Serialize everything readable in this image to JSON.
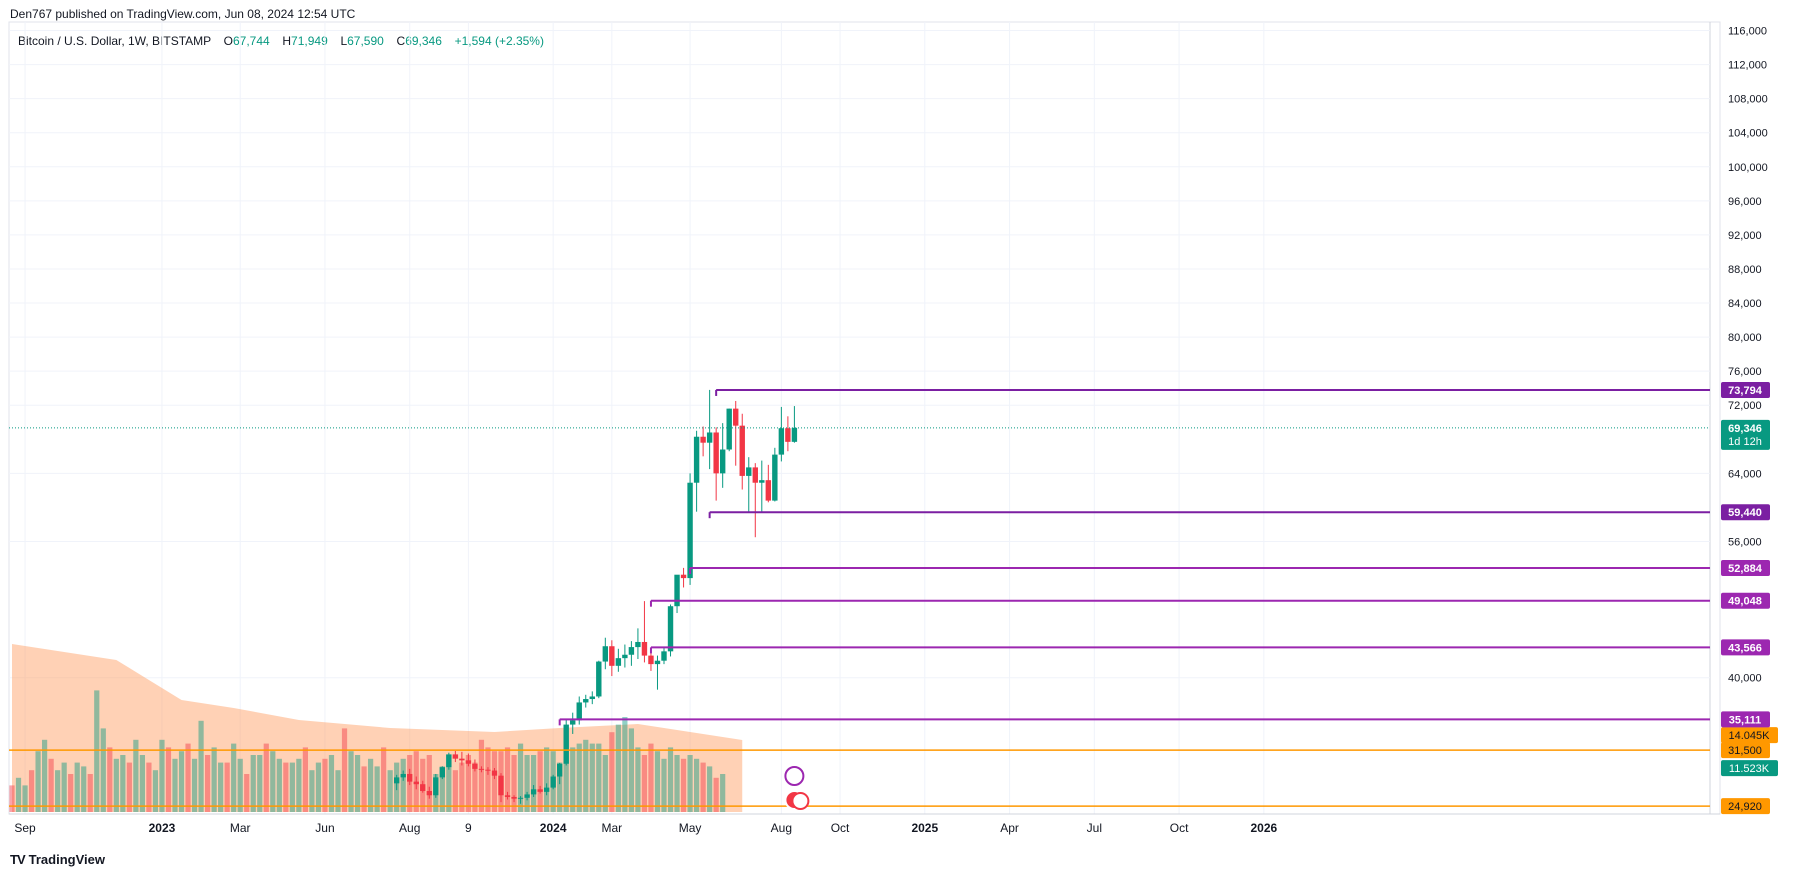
{
  "header": {
    "published": "Den767 published on TradingView.com, Jun 08, 2024 12:54 UTC"
  },
  "legend": {
    "symbol": "Bitcoin / U.S. Dollar, 1W, BITSTAMP",
    "o_label": "O",
    "o": "67,744",
    "h_label": "H",
    "h": "71,949",
    "l_label": "L",
    "l": "67,590",
    "c_label": "C",
    "c": "69,346",
    "change": "+1,594 (+2.35%)"
  },
  "footer": {
    "brand": "TradingView",
    "logo": "TV"
  },
  "colors": {
    "up": "#089981",
    "down": "#F23645",
    "level": "#7B1FA2",
    "orange": "#FF9800",
    "grid": "#F0F3FA"
  },
  "chart_data": {
    "type": "candlestick",
    "title": "Bitcoin / U.S. Dollar, 1W, BITSTAMP",
    "y_ticks": [
      {
        "v": 116000,
        "label": "116,000"
      },
      {
        "v": 112000,
        "label": "112,000"
      },
      {
        "v": 108000,
        "label": "108,000"
      },
      {
        "v": 104000,
        "label": "104,000"
      },
      {
        "v": 100000,
        "label": "100,000"
      },
      {
        "v": 96000,
        "label": "96,000"
      },
      {
        "v": 92000,
        "label": "92,000"
      },
      {
        "v": 88000,
        "label": "88,000"
      },
      {
        "v": 84000,
        "label": "84,000"
      },
      {
        "v": 80000,
        "label": "80,000"
      },
      {
        "v": 76000,
        "label": "76,000"
      },
      {
        "v": 72000,
        "label": "72,000"
      },
      {
        "v": 64000,
        "label": "64,000"
      },
      {
        "v": 56000,
        "label": "56,000"
      },
      {
        "v": 40000,
        "label": "40,000"
      }
    ],
    "x_ticks": [
      {
        "w": 2,
        "label": "Sep",
        "bold": false
      },
      {
        "w": 23,
        "label": "2023",
        "bold": true
      },
      {
        "w": 35,
        "label": "Mar",
        "bold": false
      },
      {
        "w": 48,
        "label": "Jun",
        "bold": false
      },
      {
        "w": 61,
        "label": "Aug",
        "bold": false
      },
      {
        "w": 70,
        "label": "9",
        "bold": false
      },
      {
        "w": 83,
        "label": "2024",
        "bold": true
      },
      {
        "w": 92,
        "label": "Mar",
        "bold": false
      },
      {
        "w": 104,
        "label": "May",
        "bold": false
      },
      {
        "w": 118,
        "label": "Aug",
        "bold": false
      },
      {
        "w": 127,
        "label": "Oct",
        "bold": false
      },
      {
        "w": 140,
        "label": "2025",
        "bold": true
      },
      {
        "w": 153,
        "label": "Apr",
        "bold": false
      },
      {
        "w": 166,
        "label": "Jul",
        "bold": false
      },
      {
        "w": 179,
        "label": "Oct",
        "bold": false
      },
      {
        "w": 192,
        "label": "2026",
        "bold": true
      }
    ],
    "candles_start_week": 59,
    "candles": [
      [
        27600,
        28600,
        26800,
        28300
      ],
      [
        28300,
        29100,
        27900,
        28700
      ],
      [
        28700,
        29300,
        27400,
        27800
      ],
      [
        27800,
        28400,
        26900,
        27500
      ],
      [
        27500,
        27900,
        26500,
        26700
      ],
      [
        26700,
        27200,
        25800,
        26200
      ],
      [
        26200,
        28700,
        25900,
        28300
      ],
      [
        28300,
        29600,
        28100,
        29500
      ],
      [
        29500,
        31200,
        29200,
        31000
      ],
      [
        31000,
        31400,
        30100,
        30500
      ],
      [
        30500,
        31300,
        29700,
        30300
      ],
      [
        30300,
        31100,
        29600,
        29900
      ],
      [
        29900,
        30400,
        29000,
        29300
      ],
      [
        29300,
        29600,
        28900,
        29200
      ],
      [
        29200,
        29500,
        28600,
        29100
      ],
      [
        29100,
        29400,
        28100,
        28500
      ],
      [
        28500,
        28800,
        25400,
        26200
      ],
      [
        26200,
        26600,
        25700,
        26000
      ],
      [
        26000,
        26200,
        25400,
        25800
      ],
      [
        25800,
        26100,
        25200,
        25900
      ],
      [
        25900,
        26600,
        25600,
        26300
      ],
      [
        26300,
        27400,
        26000,
        26900
      ],
      [
        26900,
        27300,
        26400,
        26600
      ],
      [
        26600,
        27600,
        26200,
        27100
      ],
      [
        27100,
        28600,
        26900,
        28400
      ],
      [
        28400,
        30000,
        27500,
        29900
      ],
      [
        29900,
        35100,
        29700,
        34500
      ],
      [
        34500,
        35900,
        33400,
        35000
      ],
      [
        35000,
        37800,
        34500,
        37100
      ],
      [
        37100,
        38000,
        36500,
        37500
      ],
      [
        37500,
        38400,
        36900,
        37800
      ],
      [
        37800,
        42000,
        37600,
        41900
      ],
      [
        41900,
        44700,
        41000,
        43700
      ],
      [
        43700,
        44400,
        40200,
        41400
      ],
      [
        41400,
        43400,
        40700,
        42300
      ],
      [
        42300,
        43900,
        41200,
        42700
      ],
      [
        42700,
        44300,
        41400,
        43600
      ],
      [
        43600,
        45800,
        42200,
        44200
      ],
      [
        44200,
        49000,
        41800,
        42600
      ],
      [
        42600,
        43200,
        40800,
        41600
      ],
      [
        41600,
        42600,
        38600,
        42000
      ],
      [
        42000,
        43500,
        41600,
        43100
      ],
      [
        43100,
        48600,
        42500,
        48400
      ],
      [
        48400,
        52000,
        47600,
        52100
      ],
      [
        52100,
        52900,
        50600,
        51700
      ],
      [
        51700,
        64000,
        50900,
        62900
      ],
      [
        62900,
        69000,
        59500,
        68300
      ],
      [
        68300,
        69500,
        66000,
        67600
      ],
      [
        67600,
        73800,
        64500,
        68800
      ],
      [
        68800,
        69400,
        60800,
        64000
      ],
      [
        64000,
        69900,
        62300,
        66800
      ],
      [
        66800,
        71600,
        66600,
        71600
      ],
      [
        71600,
        72500,
        64900,
        69600
      ],
      [
        69600,
        71000,
        62100,
        63700
      ],
      [
        63700,
        65900,
        59500,
        64700
      ],
      [
        64700,
        65200,
        56500,
        62900
      ],
      [
        62900,
        65500,
        59500,
        63200
      ],
      [
        63200,
        65000,
        60600,
        60800
      ],
      [
        60800,
        67000,
        60700,
        66200
      ],
      [
        66200,
        71800,
        65400,
        69300
      ],
      [
        69300,
        70700,
        66600,
        67700
      ],
      [
        67700,
        71900,
        67600,
        69346
      ]
    ],
    "volume_max_bar": 100,
    "volume": [
      14,
      18,
      14,
      22,
      32,
      38,
      28,
      22,
      26,
      20,
      26,
      24,
      20,
      64,
      44,
      34,
      28,
      30,
      26,
      38,
      30,
      26,
      22,
      38,
      34,
      28,
      32,
      36,
      28,
      48,
      30,
      34,
      26,
      26,
      36,
      28,
      20,
      30,
      30,
      36,
      32,
      28,
      26,
      26,
      28,
      34,
      22,
      26,
      28,
      30,
      22,
      44,
      32,
      30,
      24,
      28,
      24,
      34,
      22,
      26,
      28,
      30,
      32,
      28,
      30,
      20,
      24,
      30,
      22,
      26,
      30,
      26,
      38,
      34,
      32,
      32,
      34,
      30,
      36,
      30,
      30,
      32,
      34,
      32,
      26,
      38,
      34,
      36,
      38,
      36,
      36,
      30,
      42,
      46,
      50,
      44,
      34,
      30,
      36,
      32,
      28,
      34,
      30,
      28,
      30,
      28,
      26,
      24,
      18,
      20
    ],
    "volume_avg": [
      {
        "w": 0,
        "v": 42
      },
      {
        "w": 8,
        "v": 40
      },
      {
        "w": 16,
        "v": 38
      },
      {
        "w": 20,
        "v": 34
      },
      {
        "w": 26,
        "v": 28
      },
      {
        "w": 34,
        "v": 26
      },
      {
        "w": 44,
        "v": 23
      },
      {
        "w": 58,
        "v": 21
      },
      {
        "w": 74,
        "v": 20
      },
      {
        "w": 84,
        "v": 21
      },
      {
        "w": 96,
        "v": 22
      },
      {
        "w": 112,
        "v": 18
      }
    ],
    "levels": [
      {
        "v": 73794,
        "label": "73,794",
        "from_week": 108,
        "color": "#7B1FA2"
      },
      {
        "v": 59440,
        "label": "59,440",
        "from_week": 107,
        "color": "#7B1FA2"
      },
      {
        "v": 52884,
        "label": "52,884",
        "from_week": 104,
        "color": "#9C27B0"
      },
      {
        "v": 49048,
        "label": "49,048",
        "from_week": 98,
        "color": "#9C27B0"
      },
      {
        "v": 43566,
        "label": "43,566",
        "from_week": 98,
        "color": "#9C27B0"
      },
      {
        "v": 35111,
        "label": "35,111",
        "from_week": 84,
        "color": "#9C27B0"
      }
    ],
    "current_price": {
      "v": 69346,
      "label": "69,346",
      "countdown": "1d 12h"
    },
    "volume_labels": {
      "avg": "14.045K",
      "avg_y_price": 31500,
      "vol": "11.523K"
    },
    "orange_lines": [
      {
        "v": 31500,
        "label": "31,500"
      },
      {
        "v": 24920,
        "label": "24,920"
      }
    ],
    "ylim": [
      24000,
      117000
    ]
  }
}
